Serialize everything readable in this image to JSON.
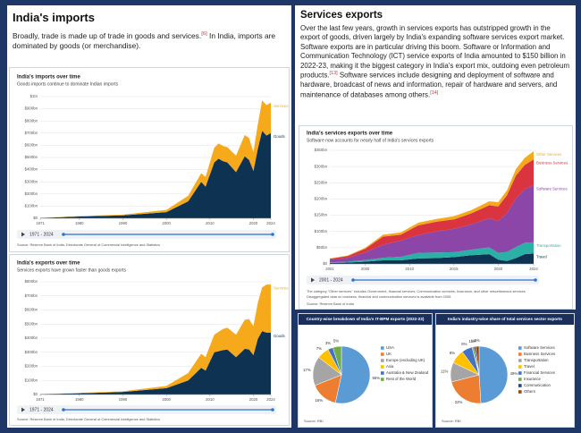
{
  "sections": {
    "imports": {
      "heading": "India's imports",
      "paragraph": [
        "Broadly, trade is made up of trade in goods and services.",
        "[6]",
        " In India, imports are dominated by goods (or merchandise)."
      ]
    },
    "services": {
      "heading": "Services exports",
      "paragraph": [
        "Over the last few years, growth in services exports has outstripped growth in the export of goods, driven largely by India's expanding software services export market. Software exports are in particular driving this boom. Software or Information and Communication Technology (ICT) service exports of India amounted to $150 billion in 2022-23, making it the biggest category in India's export mix, outdoing even petroleum products.",
        "[13]",
        " Software services include designing and deployment of software and hardware, broadcast of news and information, repair of hardware and servers, and maintenance of databases among others.",
        "[14]"
      ]
    }
  },
  "chart_data": [
    {
      "type": "area",
      "stacked": true,
      "title": "India's imports over time",
      "subtitle": "Goods imports continue to dominate Indian imports",
      "x": [
        1971,
        1980,
        1990,
        2000,
        2005,
        2008,
        2009,
        2011,
        2012,
        2013,
        2014,
        2016,
        2018,
        2019,
        2020,
        2021,
        2022,
        2023,
        2024
      ],
      "xlim": [
        1971,
        2024
      ],
      "xticks": [
        1971,
        1980,
        1990,
        2000,
        2010,
        2020,
        2024
      ],
      "ylim": [
        0,
        1000
      ],
      "yticks": [
        {
          "value": 0,
          "label": "$0"
        },
        {
          "value": 100,
          "label": "$100bn"
        },
        {
          "value": 200,
          "label": "$200bn"
        },
        {
          "value": 300,
          "label": "$300bn"
        },
        {
          "value": 400,
          "label": "$400bn"
        },
        {
          "value": 500,
          "label": "$500bn"
        },
        {
          "value": 600,
          "label": "$600bn"
        },
        {
          "value": 700,
          "label": "$700bn"
        },
        {
          "value": 800,
          "label": "$800bn"
        },
        {
          "value": 900,
          "label": "$900bn"
        },
        {
          "value": 1000,
          "label": "$1tn"
        }
      ],
      "grid": true,
      "series": [
        {
          "name": "Goods",
          "color": "#0e3352",
          "label_color": "#0e3352",
          "values": [
            2.5,
            15,
            24,
            51,
            140,
            300,
            260,
            460,
            490,
            470,
            460,
            380,
            510,
            480,
            390,
            570,
            720,
            680,
            700
          ]
        },
        {
          "name": "Services",
          "color": "#f6a91b",
          "label_color": "#f6a91b",
          "values": [
            0.5,
            3,
            6,
            18,
            45,
            70,
            80,
            120,
            125,
            125,
            125,
            135,
            175,
            180,
            155,
            200,
            250,
            250,
            250
          ]
        }
      ],
      "range_label": "1971 - 2024",
      "source": "Source: Reserve Bank of India, Directorate General of Commercial Intelligence and Statistics"
    },
    {
      "type": "area",
      "stacked": true,
      "title": "India's exports over time",
      "subtitle": "Services exports have grown faster than goods exports",
      "x": [
        1971,
        1980,
        1990,
        2000,
        2005,
        2008,
        2009,
        2011,
        2013,
        2014,
        2016,
        2018,
        2019,
        2020,
        2021,
        2022,
        2023,
        2024
      ],
      "xlim": [
        1971,
        2024
      ],
      "xticks": [
        1971,
        1980,
        1990,
        2000,
        2010,
        2020,
        2024
      ],
      "ylim": [
        0,
        800
      ],
      "yticks": [
        {
          "value": 0,
          "label": "$0"
        },
        {
          "value": 100,
          "label": "$100bn"
        },
        {
          "value": 200,
          "label": "$200bn"
        },
        {
          "value": 300,
          "label": "$300bn"
        },
        {
          "value": 400,
          "label": "$400bn"
        },
        {
          "value": 500,
          "label": "$500bn"
        },
        {
          "value": 600,
          "label": "$600bn"
        },
        {
          "value": 700,
          "label": "$700bn"
        },
        {
          "value": 800,
          "label": "$800bn"
        }
      ],
      "grid": true,
      "series": [
        {
          "name": "Goods",
          "color": "#0e3352",
          "label_color": "#0e3352",
          "values": [
            2,
            9,
            18,
            45,
            100,
            190,
            170,
            300,
            315,
            320,
            265,
            325,
            320,
            280,
            395,
            450,
            440,
            440
          ]
        },
        {
          "name": "Services",
          "color": "#f6a91b",
          "label_color": "#f6a91b",
          "values": [
            0.5,
            3,
            5,
            16,
            52,
            100,
            95,
            125,
            150,
            155,
            160,
            205,
            215,
            205,
            255,
            310,
            340,
            340
          ]
        }
      ],
      "range_label": "1971 - 2024",
      "source": "Source: Reserve Bank of India, Directorate General of Commercial Intelligence and Statistics"
    },
    {
      "type": "area",
      "stacked": true,
      "title": "India's services exports over time",
      "subtitle": "Software now accounts for nearly half of India's services exports",
      "x": [
        2001,
        2003,
        2005,
        2007,
        2009,
        2011,
        2013,
        2015,
        2017,
        2019,
        2020,
        2021,
        2022,
        2023,
        2024
      ],
      "xlim": [
        2001,
        2024
      ],
      "xticks": [
        2001,
        2005,
        2010,
        2015,
        2020,
        2024
      ],
      "ylim": [
        0,
        350
      ],
      "yticks": [
        {
          "value": 0,
          "label": "$0"
        },
        {
          "value": 50,
          "label": "$50bn"
        },
        {
          "value": 100,
          "label": "$100bn"
        },
        {
          "value": 150,
          "label": "$150bn"
        },
        {
          "value": 200,
          "label": "$200bn"
        },
        {
          "value": 250,
          "label": "$250bn"
        },
        {
          "value": 300,
          "label": "$300bn"
        },
        {
          "value": 350,
          "label": "$350bn"
        }
      ],
      "grid": true,
      "series": [
        {
          "name": "Travel",
          "color": "#0e3352",
          "label_color": "#0e3352",
          "values": [
            3,
            4,
            7,
            11,
            11,
            17,
            18,
            21,
            27,
            30,
            13,
            9,
            18,
            30,
            32
          ]
        },
        {
          "name": "Transportation",
          "color": "#2bb0a6",
          "label_color": "#2bb0a6",
          "values": [
            2,
            3,
            5,
            8,
            11,
            17,
            17,
            15,
            17,
            21,
            21,
            28,
            34,
            35,
            35
          ]
        },
        {
          "name": "Software Services",
          "color": "#8b46a8",
          "label_color": "#8b46a8",
          "values": [
            8,
            12,
            23,
            40,
            50,
            55,
            65,
            72,
            78,
            90,
            98,
            120,
            150,
            165,
            175
          ]
        },
        {
          "name": "Business Services",
          "color": "#d9343f",
          "label_color": "#d9343f",
          "values": [
            3,
            5,
            12,
            25,
            18,
            30,
            30,
            29,
            34,
            40,
            45,
            55,
            70,
            75,
            80
          ]
        },
        {
          "name": "Other Services",
          "color": "#f6a91b",
          "label_color": "#f6a91b",
          "values": [
            1,
            2,
            3,
            6,
            7,
            8,
            8,
            10,
            10,
            12,
            13,
            15,
            20,
            22,
            25
          ]
        }
      ],
      "range_label": "2001 - 2024",
      "notes": [
        "The category \"Other services\" includes Government, financial services, Communication services, Insurance, and other miscellaneous services.",
        "Disaggregated data on business, financial and communication services is available from 2005."
      ],
      "source": "Source: Reserve Bank of India"
    },
    {
      "type": "pie",
      "title": "Country-wise breakdown of India's IT-BPM exports (2022-23)",
      "categories": [
        "USA",
        "UK",
        "Europe (excluding UK)",
        "Asia",
        "Australia & New Zealand",
        "Rest of the World"
      ],
      "values": [
        55,
        16,
        17,
        7,
        3,
        5
      ],
      "value_labels": [
        "55%",
        "16%",
        "17%",
        "7%",
        "3%",
        "5%"
      ],
      "colors": [
        "#5b9bd5",
        "#ed7d31",
        "#a5a5a5",
        "#ffc000",
        "#4472c4",
        "#70ad47"
      ],
      "source": "Source: RBI"
    },
    {
      "type": "pie",
      "title": "India's industry-wise share of total services sector exports",
      "categories": [
        "Software Services",
        "Business Services",
        "Transportation",
        "Travel",
        "Financial Services",
        "Insurance",
        "Communication",
        "Others"
      ],
      "values": [
        49,
        22,
        11,
        8,
        6,
        1,
        1,
        2
      ],
      "value_labels": [
        "49%",
        "22%",
        "11%",
        "8%",
        "6%",
        "1%",
        "1%",
        "2%"
      ],
      "colors": [
        "#5b9bd5",
        "#ed7d31",
        "#a5a5a5",
        "#ffc000",
        "#4472c4",
        "#70ad47",
        "#264478",
        "#9e480e"
      ],
      "source": "Source: RBI"
    }
  ]
}
